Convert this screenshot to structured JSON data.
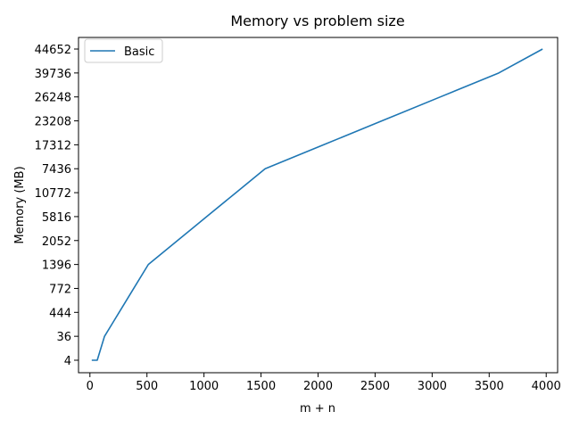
{
  "chart_data": {
    "type": "line",
    "title": "Memory vs problem size",
    "xlabel": "m + n",
    "ylabel": "Memory (MB)",
    "x_ticks": [
      0,
      500,
      1000,
      1500,
      2000,
      2500,
      3000,
      3500,
      4000
    ],
    "xlim": [
      -100,
      4100
    ],
    "y_categories": [
      "4",
      "36",
      "444",
      "772",
      "1396",
      "2052",
      "5816",
      "10772",
      "7436",
      "17312",
      "23208",
      "26248",
      "39736",
      "44652"
    ],
    "series": [
      {
        "name": "Basic",
        "color": "#1f77b4",
        "points": [
          {
            "x": 16,
            "y": "4"
          },
          {
            "x": 64,
            "y": "4"
          },
          {
            "x": 128,
            "y": "36"
          },
          {
            "x": 256,
            "y": "444"
          },
          {
            "x": 384,
            "y": "772"
          },
          {
            "x": 512,
            "y": "1396"
          },
          {
            "x": 768,
            "y": "2052"
          },
          {
            "x": 1024,
            "y": "5816"
          },
          {
            "x": 1280,
            "y": "10772"
          },
          {
            "x": 1536,
            "y": "7436"
          },
          {
            "x": 2048,
            "y": "17312"
          },
          {
            "x": 2560,
            "y": "23208"
          },
          {
            "x": 3072,
            "y": "26248"
          },
          {
            "x": 3584,
            "y": "39736"
          },
          {
            "x": 3968,
            "y": "44652"
          }
        ]
      }
    ],
    "legend": {
      "position": "upper-left",
      "entries": [
        "Basic"
      ]
    },
    "grid": false
  }
}
